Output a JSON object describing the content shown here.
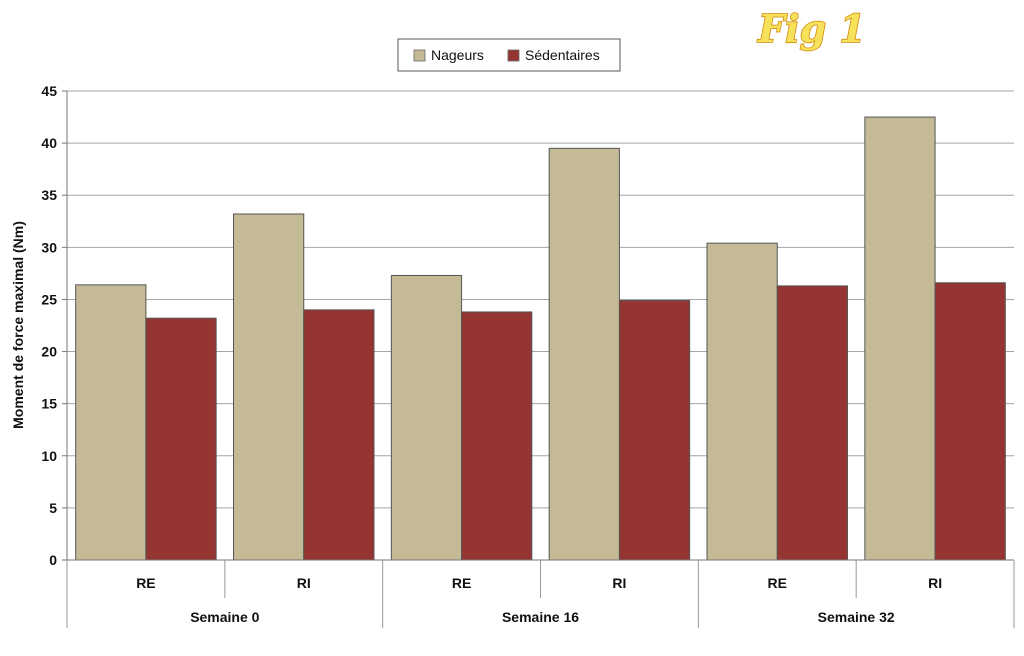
{
  "chart_data": {
    "type": "bar",
    "title": "Fig 1",
    "ylabel": "Moment de force maximal (Nm)",
    "xlabel": "",
    "ylim": [
      0,
      45
    ],
    "yticks": [
      "0",
      "5",
      "10",
      "15",
      "20",
      "25",
      "30",
      "35",
      "40",
      "45"
    ],
    "groups": [
      {
        "label": "Semaine 0",
        "categories": [
          "RE",
          "RI"
        ]
      },
      {
        "label": "Semaine 16",
        "categories": [
          "RE",
          "RI"
        ]
      },
      {
        "label": "Semaine 32",
        "categories": [
          "RE",
          "RI"
        ]
      }
    ],
    "categories": [
      "RE",
      "RI",
      "RE",
      "RI",
      "RE",
      "RI"
    ],
    "series": [
      {
        "name": "Nageurs",
        "color": "#c4bb96",
        "values": [
          26.4,
          33.2,
          27.3,
          39.5,
          30.4,
          42.5
        ]
      },
      {
        "name": "Sédentaires",
        "color": "#953532",
        "values": [
          23.2,
          24.0,
          23.8,
          24.9,
          26.3,
          26.6
        ]
      }
    ],
    "legend_position": "top",
    "grid": true
  }
}
